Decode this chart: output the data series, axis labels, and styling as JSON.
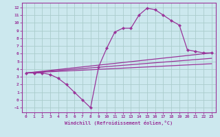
{
  "xlabel": "Windchill (Refroidissement éolien,°C)",
  "bg_color": "#cce8ee",
  "grid_color": "#aacccc",
  "line_color": "#993399",
  "axis_color": "#993399",
  "xlim": [
    -0.5,
    23.5
  ],
  "ylim": [
    -1.6,
    12.6
  ],
  "xticks": [
    0,
    1,
    2,
    3,
    4,
    5,
    6,
    7,
    8,
    9,
    10,
    11,
    12,
    13,
    14,
    15,
    16,
    17,
    18,
    19,
    20,
    21,
    22,
    23
  ],
  "yticks": [
    -1,
    0,
    1,
    2,
    3,
    4,
    5,
    6,
    7,
    8,
    9,
    10,
    11,
    12
  ],
  "curve_x": [
    0,
    1,
    2,
    3,
    4,
    5,
    6,
    7,
    8,
    9,
    10,
    11,
    12,
    13,
    14,
    15,
    16,
    17,
    18,
    19,
    20,
    21,
    22,
    23
  ],
  "curve_y": [
    3.5,
    3.5,
    3.5,
    3.3,
    2.8,
    2.0,
    1.0,
    0.0,
    -1.0,
    4.3,
    6.7,
    8.8,
    9.3,
    9.3,
    11.0,
    11.9,
    11.7,
    11.0,
    10.3,
    9.7,
    6.5,
    6.3,
    6.1,
    6.1
  ],
  "line2_x": [
    0,
    23
  ],
  "line2_y": [
    3.5,
    6.1
  ],
  "line3_x": [
    0,
    23
  ],
  "line3_y": [
    3.5,
    4.7
  ],
  "line4_x": [
    0,
    23
  ],
  "line4_y": [
    3.5,
    5.4
  ]
}
